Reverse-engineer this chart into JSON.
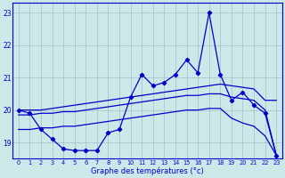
{
  "xlabel": "Graphe des températures (°c)",
  "hours": [
    0,
    1,
    2,
    3,
    4,
    5,
    6,
    7,
    8,
    9,
    10,
    11,
    12,
    13,
    14,
    15,
    16,
    17,
    18,
    19,
    20,
    21,
    22,
    23
  ],
  "line_main": [
    20.0,
    19.9,
    19.4,
    19.1,
    18.8,
    18.75,
    18.75,
    18.75,
    19.3,
    19.4,
    20.4,
    21.1,
    20.75,
    20.85,
    21.1,
    21.55,
    21.15,
    23.0,
    21.1,
    20.3,
    20.55,
    20.15,
    19.9,
    18.6
  ],
  "line_upper": [
    20.0,
    20.0,
    20.0,
    20.05,
    20.1,
    20.15,
    20.2,
    20.25,
    20.3,
    20.35,
    20.4,
    20.45,
    20.5,
    20.55,
    20.6,
    20.65,
    20.7,
    20.75,
    20.8,
    20.75,
    20.7,
    20.65,
    20.3,
    20.3
  ],
  "line_mid": [
    19.85,
    19.85,
    19.9,
    19.9,
    19.95,
    19.95,
    20.0,
    20.05,
    20.1,
    20.15,
    20.2,
    20.25,
    20.3,
    20.35,
    20.4,
    20.45,
    20.45,
    20.5,
    20.5,
    20.4,
    20.35,
    20.3,
    20.0,
    18.6
  ],
  "line_lower": [
    19.4,
    19.4,
    19.45,
    19.45,
    19.5,
    19.5,
    19.55,
    19.6,
    19.65,
    19.7,
    19.75,
    19.8,
    19.85,
    19.9,
    19.95,
    20.0,
    20.0,
    20.05,
    20.05,
    19.75,
    19.6,
    19.5,
    19.2,
    18.6
  ],
  "line_color": "#0000cd",
  "bg_color": "#cce8e8",
  "grid_color": "#9fc0c8",
  "ylim": [
    18.5,
    23.3
  ],
  "yticks": [
    19,
    20,
    21,
    22,
    23
  ]
}
